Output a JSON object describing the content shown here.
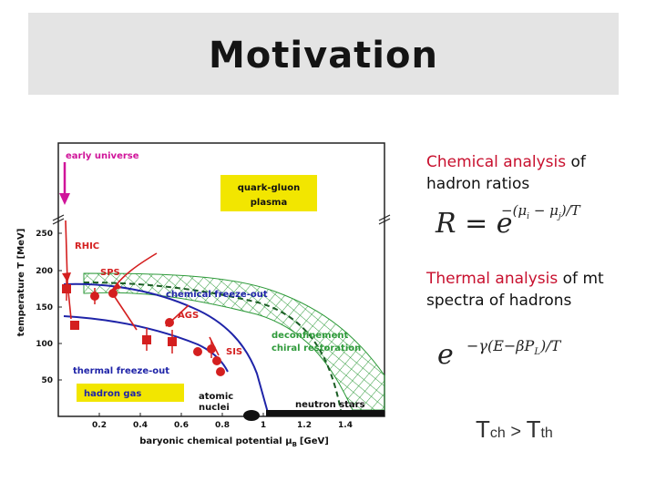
{
  "title": "Motivation",
  "figure": {
    "early_universe": "early universe",
    "qgp_line1": "quark-gluon",
    "qgp_line2": "plasma",
    "rhic": "RHIC",
    "sps": "SPS",
    "ags": "AGS",
    "sis": "SIS",
    "chem_fo": "chemical freeze-out",
    "deconf1": "deconfinement",
    "deconf2": "chiral restoration",
    "thermal_fo": "thermal freeze-out",
    "hadron_gas": "hadron gas",
    "atomic1": "atomic",
    "atomic2": "nuclei",
    "neutron": "neutron stars",
    "ylabel": "temperature T [MeV]",
    "xlabel": "baryonic chemical potential μ",
    "xlabel_sub": "B",
    "xlabel_unit": "[GeV]",
    "yticks": [
      "250",
      "200",
      "150",
      "100",
      "50"
    ],
    "xticks": [
      "0.2",
      "0.4",
      "0.6",
      "0.8",
      "1",
      "1.2",
      "1.4"
    ]
  },
  "chem": {
    "highlight": "Chemical analysis",
    "rest": " of",
    "line2": "hadron ratios"
  },
  "formula1": {
    "lhs": "R = e",
    "exp": "−(μ",
    "sub_i": "i",
    "mid": " − μ",
    "sub_j": "j",
    "tail": ")/T"
  },
  "thermal": {
    "highlight": "Thermal analysis",
    "rest": " of mt",
    "line2": "spectra of hadrons"
  },
  "formula2": {
    "base": "e",
    "exp": "−γ(E−βP",
    "sub": "L",
    "tail": ")/T"
  },
  "inequality": {
    "t1": "T",
    "s1": "ch",
    "op": " > ",
    "t2": "T",
    "s2": "th"
  },
  "colors": {
    "chem_highlight": "#c8102e",
    "plot_red": "#d41f1f",
    "plot_blue": "#1f24a8",
    "plot_green": "#2e9a3a",
    "label_yellow": "#f2e600",
    "early_universe_magenta": "#d0149a"
  }
}
